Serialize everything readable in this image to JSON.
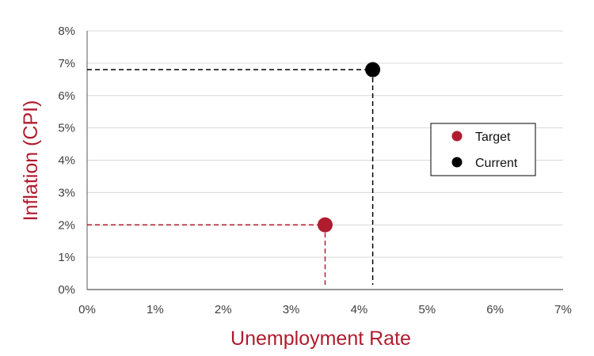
{
  "chart_data": {
    "type": "scatter",
    "title": "",
    "xlabel": "Unemployment Rate",
    "ylabel": "Inflation (CPI)",
    "xlim": [
      0,
      7
    ],
    "ylim": [
      0,
      8
    ],
    "x_ticks": [
      "0%",
      "1%",
      "2%",
      "3%",
      "4%",
      "5%",
      "6%",
      "7%"
    ],
    "y_ticks": [
      "0%",
      "1%",
      "2%",
      "3%",
      "4%",
      "5%",
      "6%",
      "7%",
      "8%"
    ],
    "grid": true,
    "legend_position": "right",
    "axis_title_color": "#b01c2e",
    "series": [
      {
        "name": "Target",
        "color": "#b01c2e",
        "points": [
          {
            "x": 3.5,
            "y": 2.0
          }
        ]
      },
      {
        "name": "Current",
        "color": "#000000",
        "points": [
          {
            "x": 4.2,
            "y": 6.8
          }
        ]
      }
    ]
  }
}
